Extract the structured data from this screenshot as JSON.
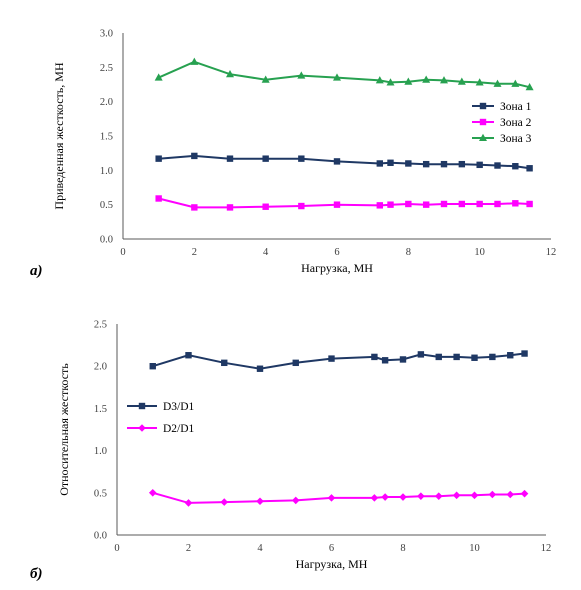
{
  "panels": [
    {
      "panel_label": "а)",
      "chart_data": {
        "type": "line",
        "xlabel": "Нагрузка, МН",
        "ylabel": "Приведенная жесткость, МН",
        "xlim": [
          0,
          12
        ],
        "ylim": [
          0,
          3.0
        ],
        "x_ticks": [
          "0",
          "2",
          "4",
          "6",
          "8",
          "10",
          "12"
        ],
        "y_ticks": [
          "0.0",
          "0.5",
          "1.0",
          "1.5",
          "2.0",
          "2.5",
          "3.0"
        ],
        "grid": false,
        "legend_position": "right",
        "series": [
          {
            "name": "Зона 1",
            "color": "#1F3864",
            "marker": "square",
            "x": [
              1,
              2,
              3,
              4,
              5,
              6,
              7.2,
              7.5,
              8,
              8.5,
              9,
              9.5,
              10,
              10.5,
              11,
              11.4
            ],
            "y": [
              1.17,
              1.21,
              1.17,
              1.17,
              1.17,
              1.13,
              1.1,
              1.11,
              1.1,
              1.09,
              1.09,
              1.09,
              1.08,
              1.07,
              1.06,
              1.03
            ]
          },
          {
            "name": "Зона 2",
            "color": "#FF00FF",
            "marker": "square",
            "x": [
              1,
              2,
              3,
              4,
              5,
              6,
              7.2,
              7.5,
              8,
              8.5,
              9,
              9.5,
              10,
              10.5,
              11,
              11.4
            ],
            "y": [
              0.59,
              0.46,
              0.46,
              0.47,
              0.48,
              0.5,
              0.49,
              0.5,
              0.51,
              0.5,
              0.51,
              0.51,
              0.51,
              0.51,
              0.52,
              0.51
            ]
          },
          {
            "name": "Зона 3",
            "color": "#27A150",
            "marker": "triangle",
            "x": [
              1,
              2,
              3,
              4,
              5,
              6,
              7.2,
              7.5,
              8,
              8.5,
              9,
              9.5,
              10,
              10.5,
              11,
              11.4
            ],
            "y": [
              2.35,
              2.58,
              2.4,
              2.32,
              2.38,
              2.35,
              2.31,
              2.28,
              2.29,
              2.32,
              2.31,
              2.29,
              2.28,
              2.26,
              2.26,
              2.21
            ]
          }
        ]
      }
    },
    {
      "panel_label": "б)",
      "chart_data": {
        "type": "line",
        "xlabel": "Нагрузка, МН",
        "ylabel": "Относительная жесткость",
        "xlim": [
          0,
          12
        ],
        "ylim": [
          0,
          2.5
        ],
        "x_ticks": [
          "0",
          "2",
          "4",
          "6",
          "8",
          "10",
          "12"
        ],
        "y_ticks": [
          "0.0",
          "0.5",
          "1.0",
          "1.5",
          "2.0",
          "2.5"
        ],
        "grid": false,
        "legend_position": "left",
        "series": [
          {
            "name": "D3/D1",
            "color": "#1F3864",
            "marker": "square",
            "x": [
              1,
              2,
              3,
              4,
              5,
              6,
              7.2,
              7.5,
              8,
              8.5,
              9,
              9.5,
              10,
              10.5,
              11,
              11.4
            ],
            "y": [
              2.0,
              2.13,
              2.04,
              1.97,
              2.04,
              2.09,
              2.11,
              2.07,
              2.08,
              2.14,
              2.11,
              2.11,
              2.1,
              2.11,
              2.13,
              2.15
            ]
          },
          {
            "name": "D2/D1",
            "color": "#FF00FF",
            "marker": "diamond",
            "x": [
              1,
              2,
              3,
              4,
              5,
              6,
              7.2,
              7.5,
              8,
              8.5,
              9,
              9.5,
              10,
              10.5,
              11,
              11.4
            ],
            "y": [
              0.5,
              0.38,
              0.39,
              0.4,
              0.41,
              0.44,
              0.44,
              0.45,
              0.45,
              0.46,
              0.46,
              0.47,
              0.47,
              0.48,
              0.48,
              0.49
            ]
          }
        ]
      }
    }
  ]
}
